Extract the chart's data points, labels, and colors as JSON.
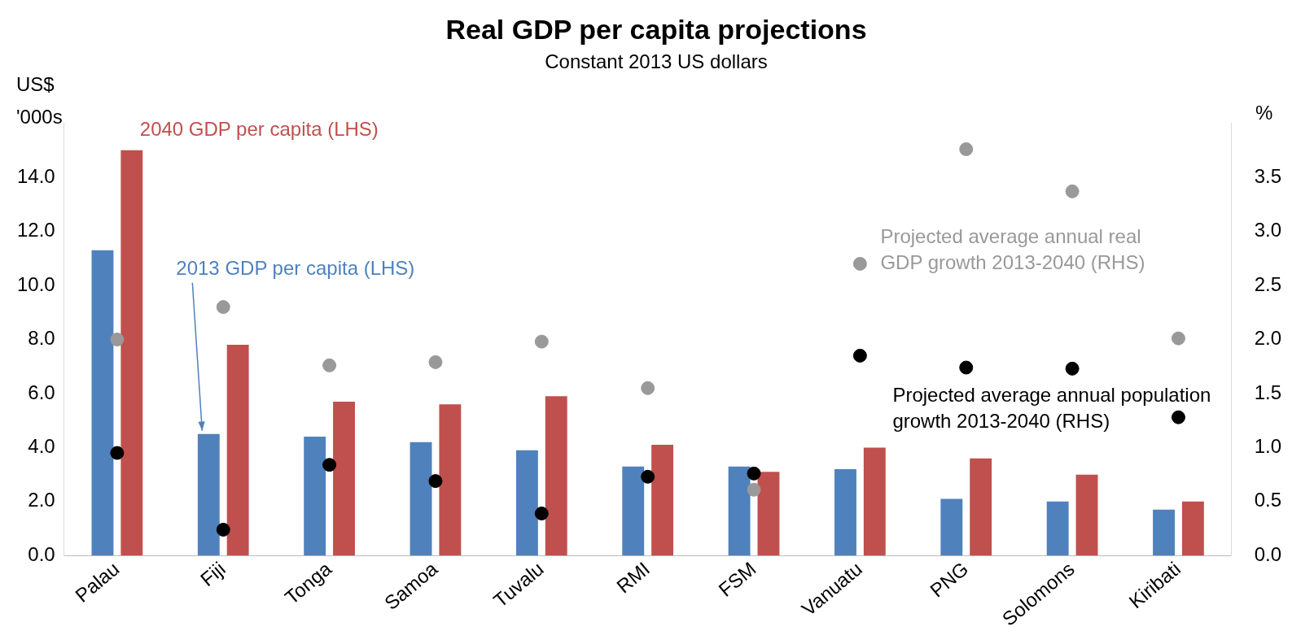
{
  "chart_data": {
    "type": "bar",
    "title": "Real GDP per capita projections",
    "subtitle": "Constant 2013 US dollars",
    "ylabel": "US$ '000s",
    "y2label": "%",
    "categories": [
      "Palau",
      "Fiji",
      "Tonga",
      "Samoa",
      "Tuvalu",
      "RMI",
      "FSM",
      "Vanuatu",
      "PNG",
      "Solomons",
      "Kiribati"
    ],
    "series": [
      {
        "name": "2013 GDP per capita (LHS)",
        "color": "#4f81bd",
        "values": [
          11.3,
          4.5,
          4.4,
          4.2,
          3.9,
          3.3,
          3.3,
          3.2,
          2.1,
          2.0,
          1.7
        ]
      },
      {
        "name": "2040 GDP per capita (LHS)",
        "color": "#c0504d",
        "values": [
          15.0,
          7.8,
          5.7,
          5.6,
          5.9,
          4.1,
          3.1,
          4.0,
          3.6,
          3.0,
          2.0
        ]
      },
      {
        "name": "Projected average annual real GDP growth 2013-2040 (RHS)",
        "type": "scatter",
        "axis": "y2",
        "color": "#999999",
        "values": [
          2.0,
          2.3,
          1.76,
          1.79,
          1.98,
          1.55,
          0.61,
          2.7,
          3.76,
          3.37,
          2.01
        ]
      },
      {
        "name": "Projected average annual population growth 2013-2040 (RHS)",
        "type": "scatter",
        "axis": "y2",
        "color": "#000000",
        "values": [
          0.95,
          0.24,
          0.84,
          0.69,
          0.39,
          0.73,
          0.76,
          1.85,
          1.74,
          1.73,
          1.28
        ]
      }
    ],
    "ylim": [
      0,
      16
    ],
    "yticks": [
      {
        "value": 0,
        "label": "0.0"
      },
      {
        "value": 2,
        "label": "2.0"
      },
      {
        "value": 4,
        "label": "4.0"
      },
      {
        "value": 6,
        "label": "6.0"
      },
      {
        "value": 8,
        "label": "8.0"
      },
      {
        "value": 10,
        "label": "10.0"
      },
      {
        "value": 12,
        "label": "12.0"
      },
      {
        "value": 14,
        "label": "14.0"
      }
    ],
    "y2lim": [
      0,
      4
    ],
    "y2ticks": [
      {
        "value": 0,
        "label": "0.0"
      },
      {
        "value": 0.5,
        "label": "0.5"
      },
      {
        "value": 1,
        "label": "1.0"
      },
      {
        "value": 1.5,
        "label": "1.5"
      },
      {
        "value": 2,
        "label": "2.0"
      },
      {
        "value": 2.5,
        "label": "2.5"
      },
      {
        "value": 3,
        "label": "3.0"
      },
      {
        "value": 3.5,
        "label": "3.5"
      }
    ],
    "grid": false,
    "legend": false,
    "marker": "circle"
  }
}
